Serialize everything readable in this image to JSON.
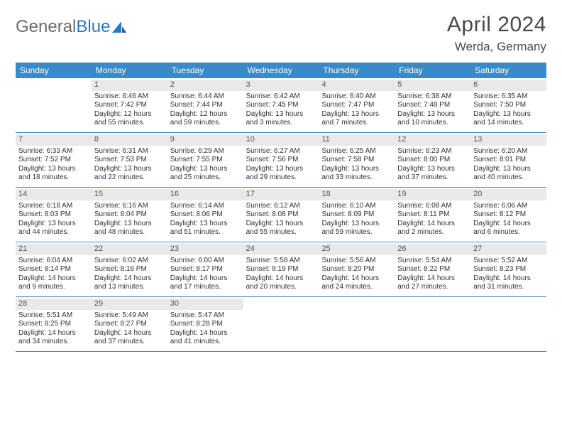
{
  "brand": {
    "part1": "General",
    "part2": "Blue"
  },
  "title": "April 2024",
  "location": "Werda, Germany",
  "colors": {
    "header_bg": "#3a8ac8",
    "header_text": "#ffffff",
    "daynum_bg": "#e9e9e9",
    "body_text": "#333333",
    "rule": "#3a8ac8"
  },
  "weekdays": [
    "Sunday",
    "Monday",
    "Tuesday",
    "Wednesday",
    "Thursday",
    "Friday",
    "Saturday"
  ],
  "weeks": [
    [
      {
        "n": "",
        "lines": []
      },
      {
        "n": "1",
        "lines": [
          "Sunrise: 6:46 AM",
          "Sunset: 7:42 PM",
          "Daylight: 12 hours",
          "and 55 minutes."
        ]
      },
      {
        "n": "2",
        "lines": [
          "Sunrise: 6:44 AM",
          "Sunset: 7:44 PM",
          "Daylight: 12 hours",
          "and 59 minutes."
        ]
      },
      {
        "n": "3",
        "lines": [
          "Sunrise: 6:42 AM",
          "Sunset: 7:45 PM",
          "Daylight: 13 hours",
          "and 3 minutes."
        ]
      },
      {
        "n": "4",
        "lines": [
          "Sunrise: 6:40 AM",
          "Sunset: 7:47 PM",
          "Daylight: 13 hours",
          "and 7 minutes."
        ]
      },
      {
        "n": "5",
        "lines": [
          "Sunrise: 6:38 AM",
          "Sunset: 7:48 PM",
          "Daylight: 13 hours",
          "and 10 minutes."
        ]
      },
      {
        "n": "6",
        "lines": [
          "Sunrise: 6:35 AM",
          "Sunset: 7:50 PM",
          "Daylight: 13 hours",
          "and 14 minutes."
        ]
      }
    ],
    [
      {
        "n": "7",
        "lines": [
          "Sunrise: 6:33 AM",
          "Sunset: 7:52 PM",
          "Daylight: 13 hours",
          "and 18 minutes."
        ]
      },
      {
        "n": "8",
        "lines": [
          "Sunrise: 6:31 AM",
          "Sunset: 7:53 PM",
          "Daylight: 13 hours",
          "and 22 minutes."
        ]
      },
      {
        "n": "9",
        "lines": [
          "Sunrise: 6:29 AM",
          "Sunset: 7:55 PM",
          "Daylight: 13 hours",
          "and 25 minutes."
        ]
      },
      {
        "n": "10",
        "lines": [
          "Sunrise: 6:27 AM",
          "Sunset: 7:56 PM",
          "Daylight: 13 hours",
          "and 29 minutes."
        ]
      },
      {
        "n": "11",
        "lines": [
          "Sunrise: 6:25 AM",
          "Sunset: 7:58 PM",
          "Daylight: 13 hours",
          "and 33 minutes."
        ]
      },
      {
        "n": "12",
        "lines": [
          "Sunrise: 6:23 AM",
          "Sunset: 8:00 PM",
          "Daylight: 13 hours",
          "and 37 minutes."
        ]
      },
      {
        "n": "13",
        "lines": [
          "Sunrise: 6:20 AM",
          "Sunset: 8:01 PM",
          "Daylight: 13 hours",
          "and 40 minutes."
        ]
      }
    ],
    [
      {
        "n": "14",
        "lines": [
          "Sunrise: 6:18 AM",
          "Sunset: 8:03 PM",
          "Daylight: 13 hours",
          "and 44 minutes."
        ]
      },
      {
        "n": "15",
        "lines": [
          "Sunrise: 6:16 AM",
          "Sunset: 8:04 PM",
          "Daylight: 13 hours",
          "and 48 minutes."
        ]
      },
      {
        "n": "16",
        "lines": [
          "Sunrise: 6:14 AM",
          "Sunset: 8:06 PM",
          "Daylight: 13 hours",
          "and 51 minutes."
        ]
      },
      {
        "n": "17",
        "lines": [
          "Sunrise: 6:12 AM",
          "Sunset: 8:08 PM",
          "Daylight: 13 hours",
          "and 55 minutes."
        ]
      },
      {
        "n": "18",
        "lines": [
          "Sunrise: 6:10 AM",
          "Sunset: 8:09 PM",
          "Daylight: 13 hours",
          "and 59 minutes."
        ]
      },
      {
        "n": "19",
        "lines": [
          "Sunrise: 6:08 AM",
          "Sunset: 8:11 PM",
          "Daylight: 14 hours",
          "and 2 minutes."
        ]
      },
      {
        "n": "20",
        "lines": [
          "Sunrise: 6:06 AM",
          "Sunset: 8:12 PM",
          "Daylight: 14 hours",
          "and 6 minutes."
        ]
      }
    ],
    [
      {
        "n": "21",
        "lines": [
          "Sunrise: 6:04 AM",
          "Sunset: 8:14 PM",
          "Daylight: 14 hours",
          "and 9 minutes."
        ]
      },
      {
        "n": "22",
        "lines": [
          "Sunrise: 6:02 AM",
          "Sunset: 8:16 PM",
          "Daylight: 14 hours",
          "and 13 minutes."
        ]
      },
      {
        "n": "23",
        "lines": [
          "Sunrise: 6:00 AM",
          "Sunset: 8:17 PM",
          "Daylight: 14 hours",
          "and 17 minutes."
        ]
      },
      {
        "n": "24",
        "lines": [
          "Sunrise: 5:58 AM",
          "Sunset: 8:19 PM",
          "Daylight: 14 hours",
          "and 20 minutes."
        ]
      },
      {
        "n": "25",
        "lines": [
          "Sunrise: 5:56 AM",
          "Sunset: 8:20 PM",
          "Daylight: 14 hours",
          "and 24 minutes."
        ]
      },
      {
        "n": "26",
        "lines": [
          "Sunrise: 5:54 AM",
          "Sunset: 8:22 PM",
          "Daylight: 14 hours",
          "and 27 minutes."
        ]
      },
      {
        "n": "27",
        "lines": [
          "Sunrise: 5:52 AM",
          "Sunset: 8:23 PM",
          "Daylight: 14 hours",
          "and 31 minutes."
        ]
      }
    ],
    [
      {
        "n": "28",
        "lines": [
          "Sunrise: 5:51 AM",
          "Sunset: 8:25 PM",
          "Daylight: 14 hours",
          "and 34 minutes."
        ]
      },
      {
        "n": "29",
        "lines": [
          "Sunrise: 5:49 AM",
          "Sunset: 8:27 PM",
          "Daylight: 14 hours",
          "and 37 minutes."
        ]
      },
      {
        "n": "30",
        "lines": [
          "Sunrise: 5:47 AM",
          "Sunset: 8:28 PM",
          "Daylight: 14 hours",
          "and 41 minutes."
        ]
      },
      {
        "n": "",
        "lines": []
      },
      {
        "n": "",
        "lines": []
      },
      {
        "n": "",
        "lines": []
      },
      {
        "n": "",
        "lines": []
      }
    ]
  ]
}
